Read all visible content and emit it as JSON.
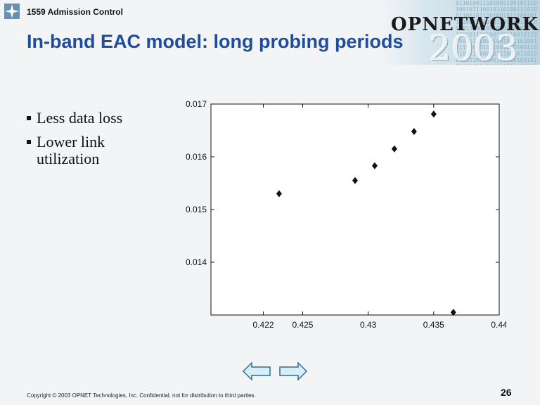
{
  "header": {
    "section_label": "1559 Admission Control"
  },
  "brand": {
    "name": "OPNETWORK",
    "year": "2003",
    "matrix_digits": "0110100111010011001011101001011100101101001110100110010111010010111001011010011101001100101110100101110010110100111010011001011101001011100101101001110100110010111010010111001011010011101001100101110100101110010110100111010011001011101001011100101101001110100110010111010"
  },
  "slide": {
    "title": "In-band EAC model: long probing periods",
    "bullets": [
      "Less data loss",
      "Lower link utilization"
    ]
  },
  "chart_data": {
    "type": "scatter",
    "x": [
      0.4232,
      0.429,
      0.4305,
      0.432,
      0.4335,
      0.435,
      0.4365
    ],
    "y": [
      0.0153,
      0.01555,
      0.01583,
      0.01615,
      0.01648,
      0.01681,
      0.01305
    ],
    "xlim": [
      0.418,
      0.44
    ],
    "ylim": [
      0.013,
      0.017
    ],
    "xticks": [
      0.422,
      0.425,
      0.43,
      0.435,
      0.44
    ],
    "xtick_labels": [
      "0.422",
      "0.425",
      "0.43",
      "0.435",
      "0.44"
    ],
    "yticks": [
      0.014,
      0.015,
      0.016,
      0.017
    ],
    "ytick_labels": [
      "0.014",
      "0.015",
      "0.016",
      "0.017"
    ],
    "marker": "diamond",
    "grid": false
  },
  "navigation": {
    "prev_icon": "left-arrow-icon",
    "next_icon": "right-arrow-icon",
    "arrow_fill": "#d9eef6",
    "arrow_stroke": "#2a6f9a"
  },
  "footer": {
    "copyright": "Copyright © 2003 OPNET Technologies, Inc.  Confidential, not for distribution to third parties.",
    "page_number": "26"
  }
}
